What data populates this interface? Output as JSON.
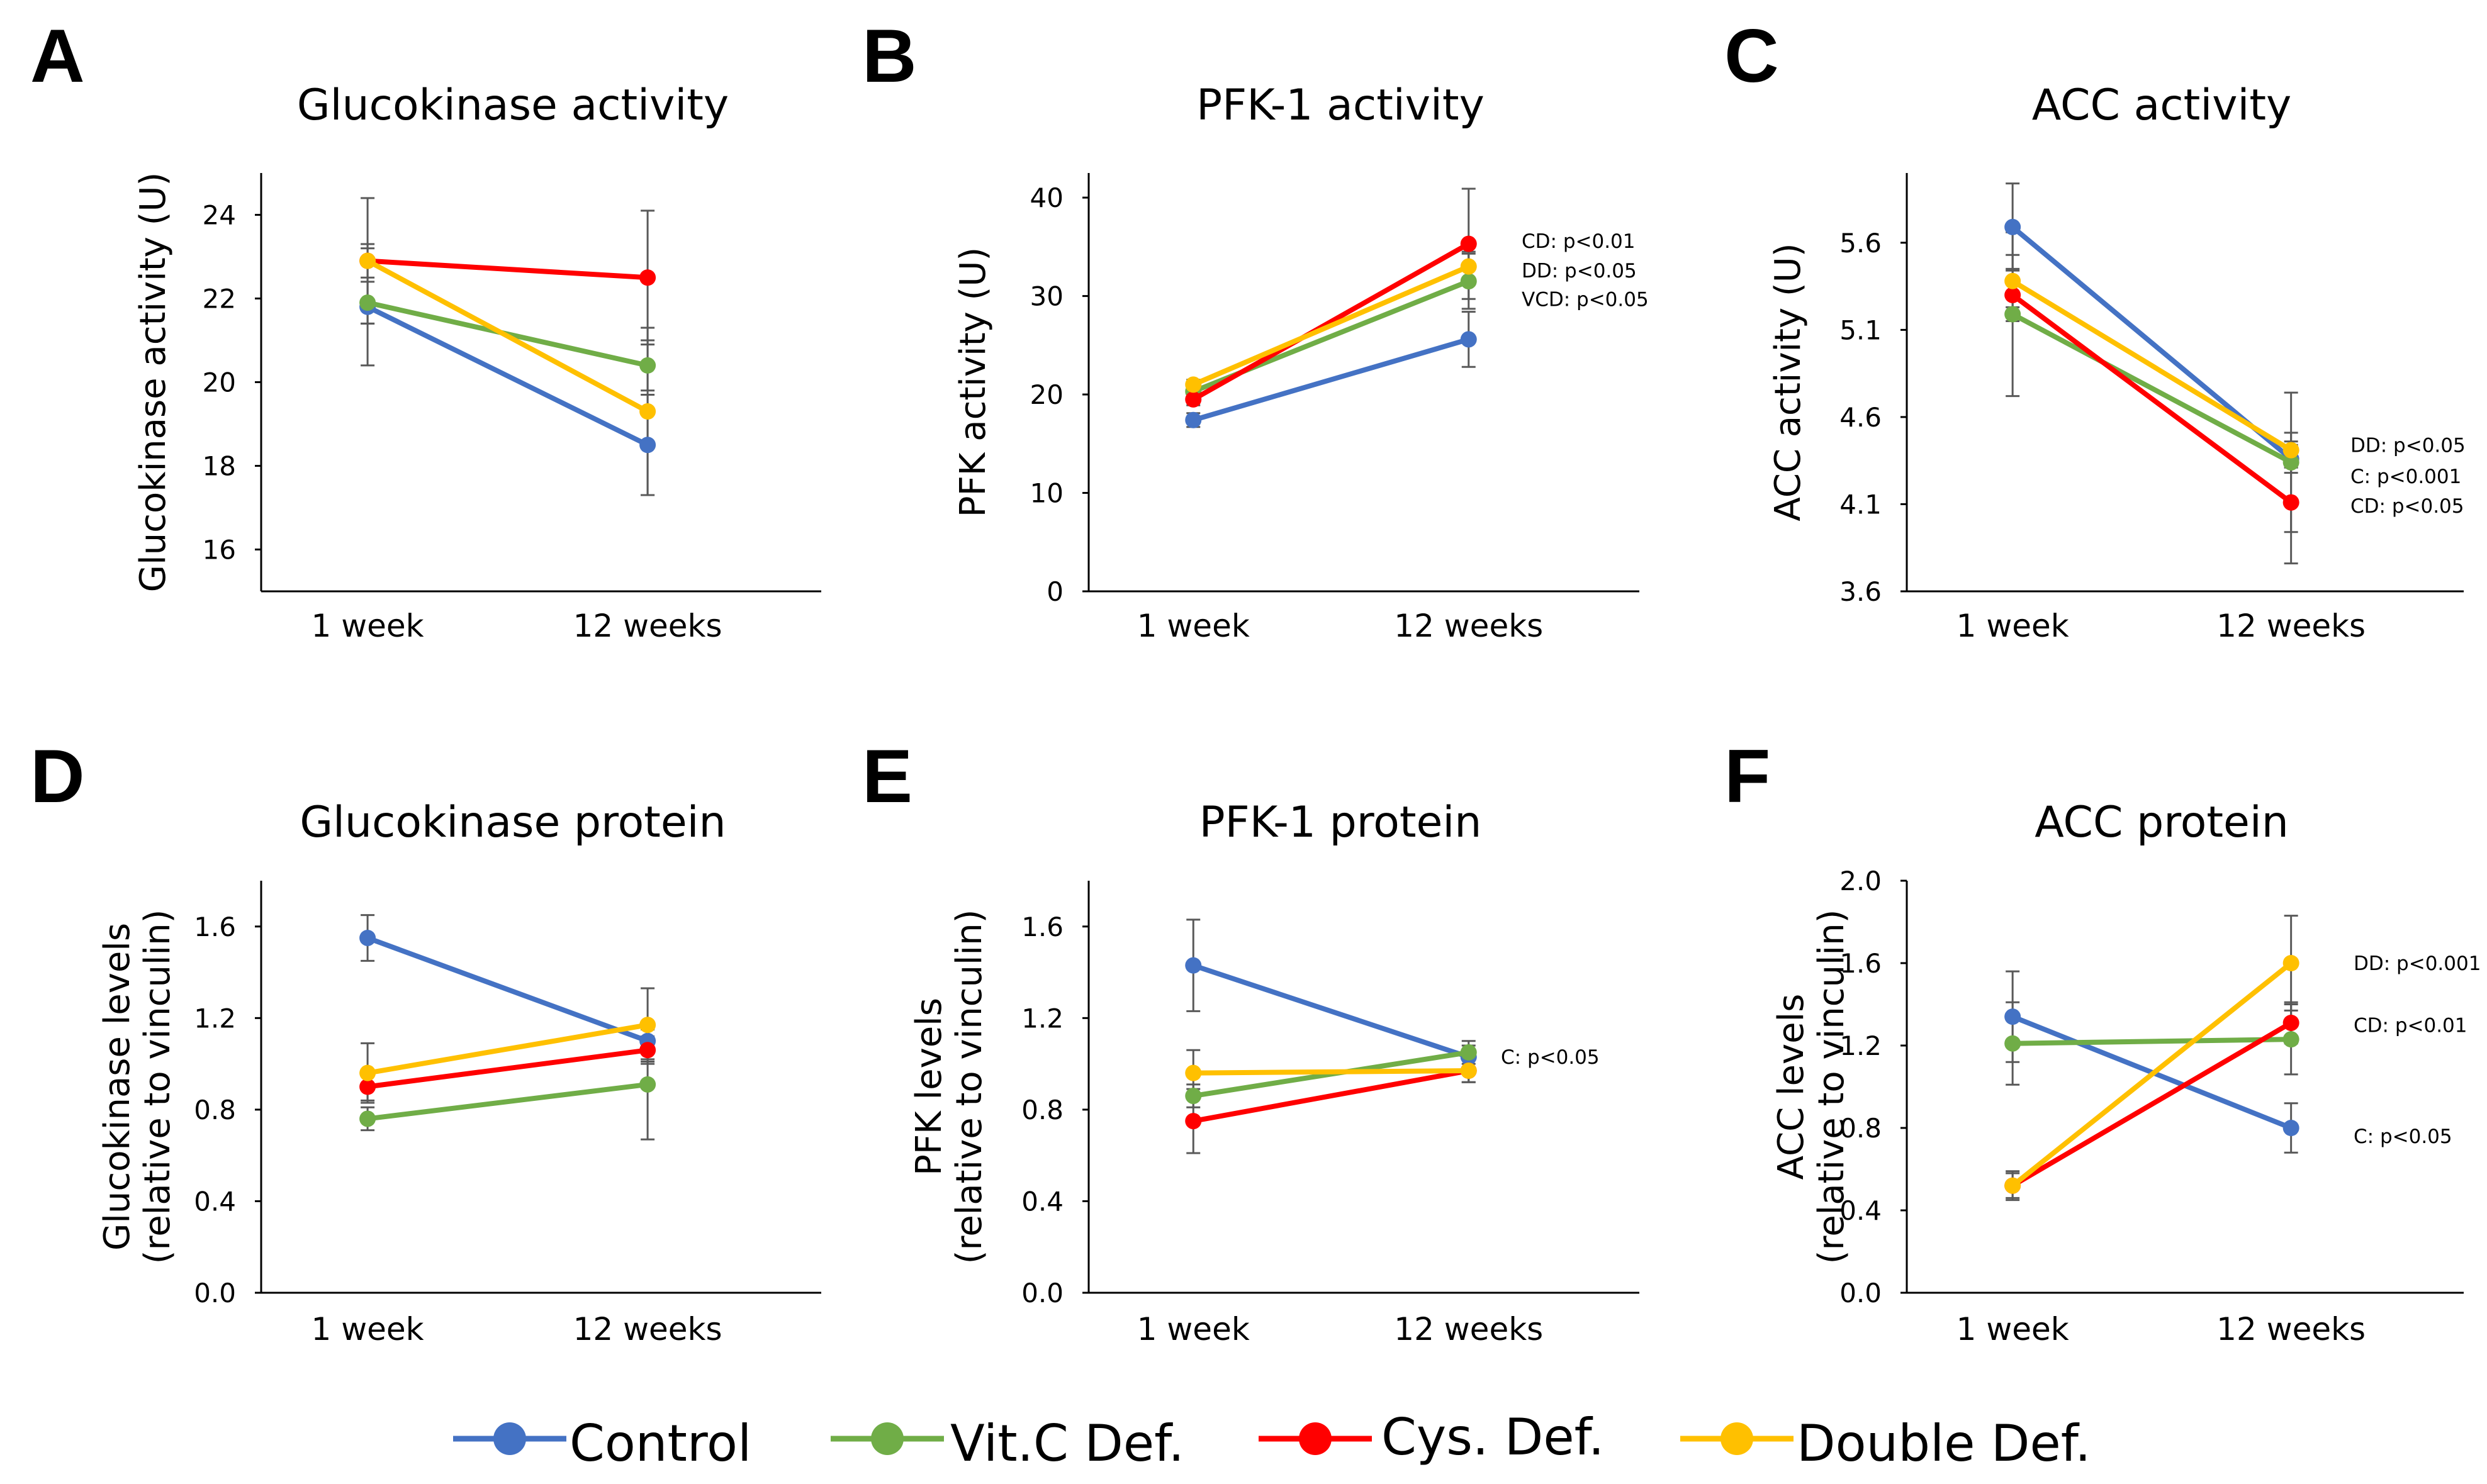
{
  "legend": [
    {
      "name": "Control",
      "color": "#4472C4"
    },
    {
      "name": "Vit.C Def.",
      "color": "#70AD47"
    },
    {
      "name": "Cys. Def.",
      "color": "#FF0000"
    },
    {
      "name": "Double Def.",
      "color": "#FFC000"
    }
  ],
  "chart_data": [
    {
      "letter": "A",
      "type": "line",
      "title": "Glucokinase activity",
      "ylabel": [
        "Glucokinase activity (U)"
      ],
      "categories": [
        "1 week",
        "12 weeks"
      ],
      "ylim": [
        15,
        25
      ],
      "yticks": [
        16,
        18,
        20,
        22,
        24
      ],
      "ytick_labels": [
        "16",
        "18",
        "20",
        "22",
        "24"
      ],
      "series": [
        {
          "name": "Control",
          "values": [
            21.8,
            18.5
          ],
          "errors": [
            1.4,
            1.2
          ]
        },
        {
          "name": "Vit.C Def.",
          "values": [
            21.9,
            20.4
          ],
          "errors": [
            0.5,
            0.6
          ]
        },
        {
          "name": "Cys. Def.",
          "values": [
            22.9,
            22.5
          ],
          "errors": [
            1.5,
            1.6
          ]
        },
        {
          "name": "Double Def.",
          "values": [
            22.9,
            19.3
          ],
          "errors": [
            0.4,
            2.0
          ]
        }
      ],
      "annotations": []
    },
    {
      "letter": "B",
      "type": "line",
      "title": "PFK-1 activity",
      "ylabel": [
        "PFK activity (U)"
      ],
      "categories": [
        "1 week",
        "12 weeks"
      ],
      "ylim": [
        0,
        42.5
      ],
      "yticks": [
        0,
        10,
        20,
        30,
        40
      ],
      "ytick_labels": [
        "0",
        "10",
        "20",
        "30",
        "40"
      ],
      "series": [
        {
          "name": "Control",
          "values": [
            17.4,
            25.6
          ],
          "errors": [
            0.7,
            2.8
          ]
        },
        {
          "name": "Vit.C Def.",
          "values": [
            20.3,
            31.5
          ],
          "errors": [
            0.5,
            2.8
          ]
        },
        {
          "name": "Cys. Def.",
          "values": [
            19.5,
            35.3
          ],
          "errors": [
            0.6,
            5.6
          ]
        },
        {
          "name": "Double Def.",
          "values": [
            21.0,
            33.0
          ],
          "errors": [
            0.5,
            1.5
          ]
        }
      ],
      "annotations": [
        {
          "text": "CD: p<0.01",
          "y": 35.6
        },
        {
          "text": "DD: p<0.05",
          "y": 32.6
        },
        {
          "text": "VCD: p<0.05",
          "y": 29.7
        }
      ]
    },
    {
      "letter": "C",
      "type": "line",
      "title": "ACC activity",
      "ylabel": [
        "ACC activity (U)"
      ],
      "categories": [
        "1 week",
        "12 weeks"
      ],
      "ylim": [
        3.6,
        6.0
      ],
      "yticks": [
        3.6,
        4.1,
        4.6,
        5.1,
        5.6
      ],
      "ytick_labels": [
        "3.6",
        "4.1",
        "4.6",
        "5.1",
        "5.6"
      ],
      "series": [
        {
          "name": "Control",
          "values": [
            5.69,
            4.36
          ],
          "errors": [
            0.25,
            0.08
          ]
        },
        {
          "name": "Vit.C Def.",
          "values": [
            5.19,
            4.34
          ],
          "errors": [
            0.47,
            0.4
          ]
        },
        {
          "name": "Cys. Def.",
          "values": [
            5.3,
            4.11
          ],
          "errors": [
            0.15,
            0.35
          ]
        },
        {
          "name": "Double Def.",
          "values": [
            5.38,
            4.41
          ],
          "errors": [
            0.15,
            0.1
          ]
        }
      ],
      "annotations": [
        {
          "text": "DD: p<0.05",
          "y": 4.44
        },
        {
          "text": "C: p<0.001",
          "y": 4.26
        },
        {
          "text": "CD: p<0.05",
          "y": 4.09
        }
      ]
    },
    {
      "letter": "D",
      "type": "line",
      "title": "Glucokinase protein",
      "ylabel": [
        "Glucokinase levels",
        "(relative to vinculin)"
      ],
      "categories": [
        "1 week",
        "12 weeks"
      ],
      "ylim": [
        0,
        1.8
      ],
      "yticks": [
        0,
        0.4,
        0.8,
        1.2,
        1.6
      ],
      "ytick_labels": [
        "0.0",
        "0.4",
        "0.8",
        "1.2",
        "1.6"
      ],
      "series": [
        {
          "name": "Control",
          "values": [
            1.55,
            1.1
          ],
          "errors": [
            0.1,
            0.08
          ]
        },
        {
          "name": "Vit.C Def.",
          "values": [
            0.76,
            0.91
          ],
          "errors": [
            0.05,
            0.24
          ]
        },
        {
          "name": "Cys. Def.",
          "values": [
            0.9,
            1.06
          ],
          "errors": [
            0.06,
            0.06
          ]
        },
        {
          "name": "Double Def.",
          "values": [
            0.96,
            1.17
          ],
          "errors": [
            0.13,
            0.16
          ]
        }
      ],
      "annotations": []
    },
    {
      "letter": "E",
      "type": "line",
      "title": "PFK-1 protein",
      "ylabel": [
        "PFK levels",
        "(relative to vinculin)"
      ],
      "categories": [
        "1 week",
        "12 weeks"
      ],
      "ylim": [
        0,
        1.8
      ],
      "yticks": [
        0,
        0.4,
        0.8,
        1.2,
        1.6
      ],
      "ytick_labels": [
        "0.0",
        "0.4",
        "0.8",
        "1.2",
        "1.6"
      ],
      "series": [
        {
          "name": "Control",
          "values": [
            1.43,
            1.03
          ],
          "errors": [
            0.2,
            0.05
          ]
        },
        {
          "name": "Vit.C Def.",
          "values": [
            0.86,
            1.05
          ],
          "errors": [
            0.05,
            0.05
          ]
        },
        {
          "name": "Cys. Def.",
          "values": [
            0.75,
            0.97
          ],
          "errors": [
            0.14,
            0.05
          ]
        },
        {
          "name": "Double Def.",
          "values": [
            0.96,
            0.97
          ],
          "errors": [
            0.1,
            0.05
          ]
        }
      ],
      "annotations": [
        {
          "text": "C: p<0.05",
          "y": 1.03
        }
      ]
    },
    {
      "letter": "F",
      "type": "line",
      "title": "ACC protein",
      "ylabel": [
        "ACC levels",
        "(relative to vinculin)"
      ],
      "categories": [
        "1 week",
        "12 weeks"
      ],
      "ylim": [
        0,
        2.0
      ],
      "yticks": [
        0,
        0.4,
        0.8,
        1.2,
        1.6,
        2.0
      ],
      "ytick_labels": [
        "0.0",
        "0.4",
        "0.8",
        "1.2",
        "1.6",
        "2.0"
      ],
      "series": [
        {
          "name": "Control",
          "values": [
            1.34,
            0.8
          ],
          "errors": [
            0.22,
            0.12
          ]
        },
        {
          "name": "Vit.C Def.",
          "values": [
            1.21,
            1.23
          ],
          "errors": [
            0.2,
            0.17
          ]
        },
        {
          "name": "Cys. Def.",
          "values": [
            0.52,
            1.31
          ],
          "errors": [
            0.07,
            0.1
          ]
        },
        {
          "name": "Double Def.",
          "values": [
            0.52,
            1.6
          ],
          "errors": [
            0.06,
            0.23
          ]
        }
      ],
      "annotations": [
        {
          "text": "DD: p<0.001",
          "y": 1.6
        },
        {
          "text": "CD: p<0.01",
          "y": 1.3
        },
        {
          "text": "C: p<0.05",
          "y": 0.76
        }
      ]
    }
  ]
}
